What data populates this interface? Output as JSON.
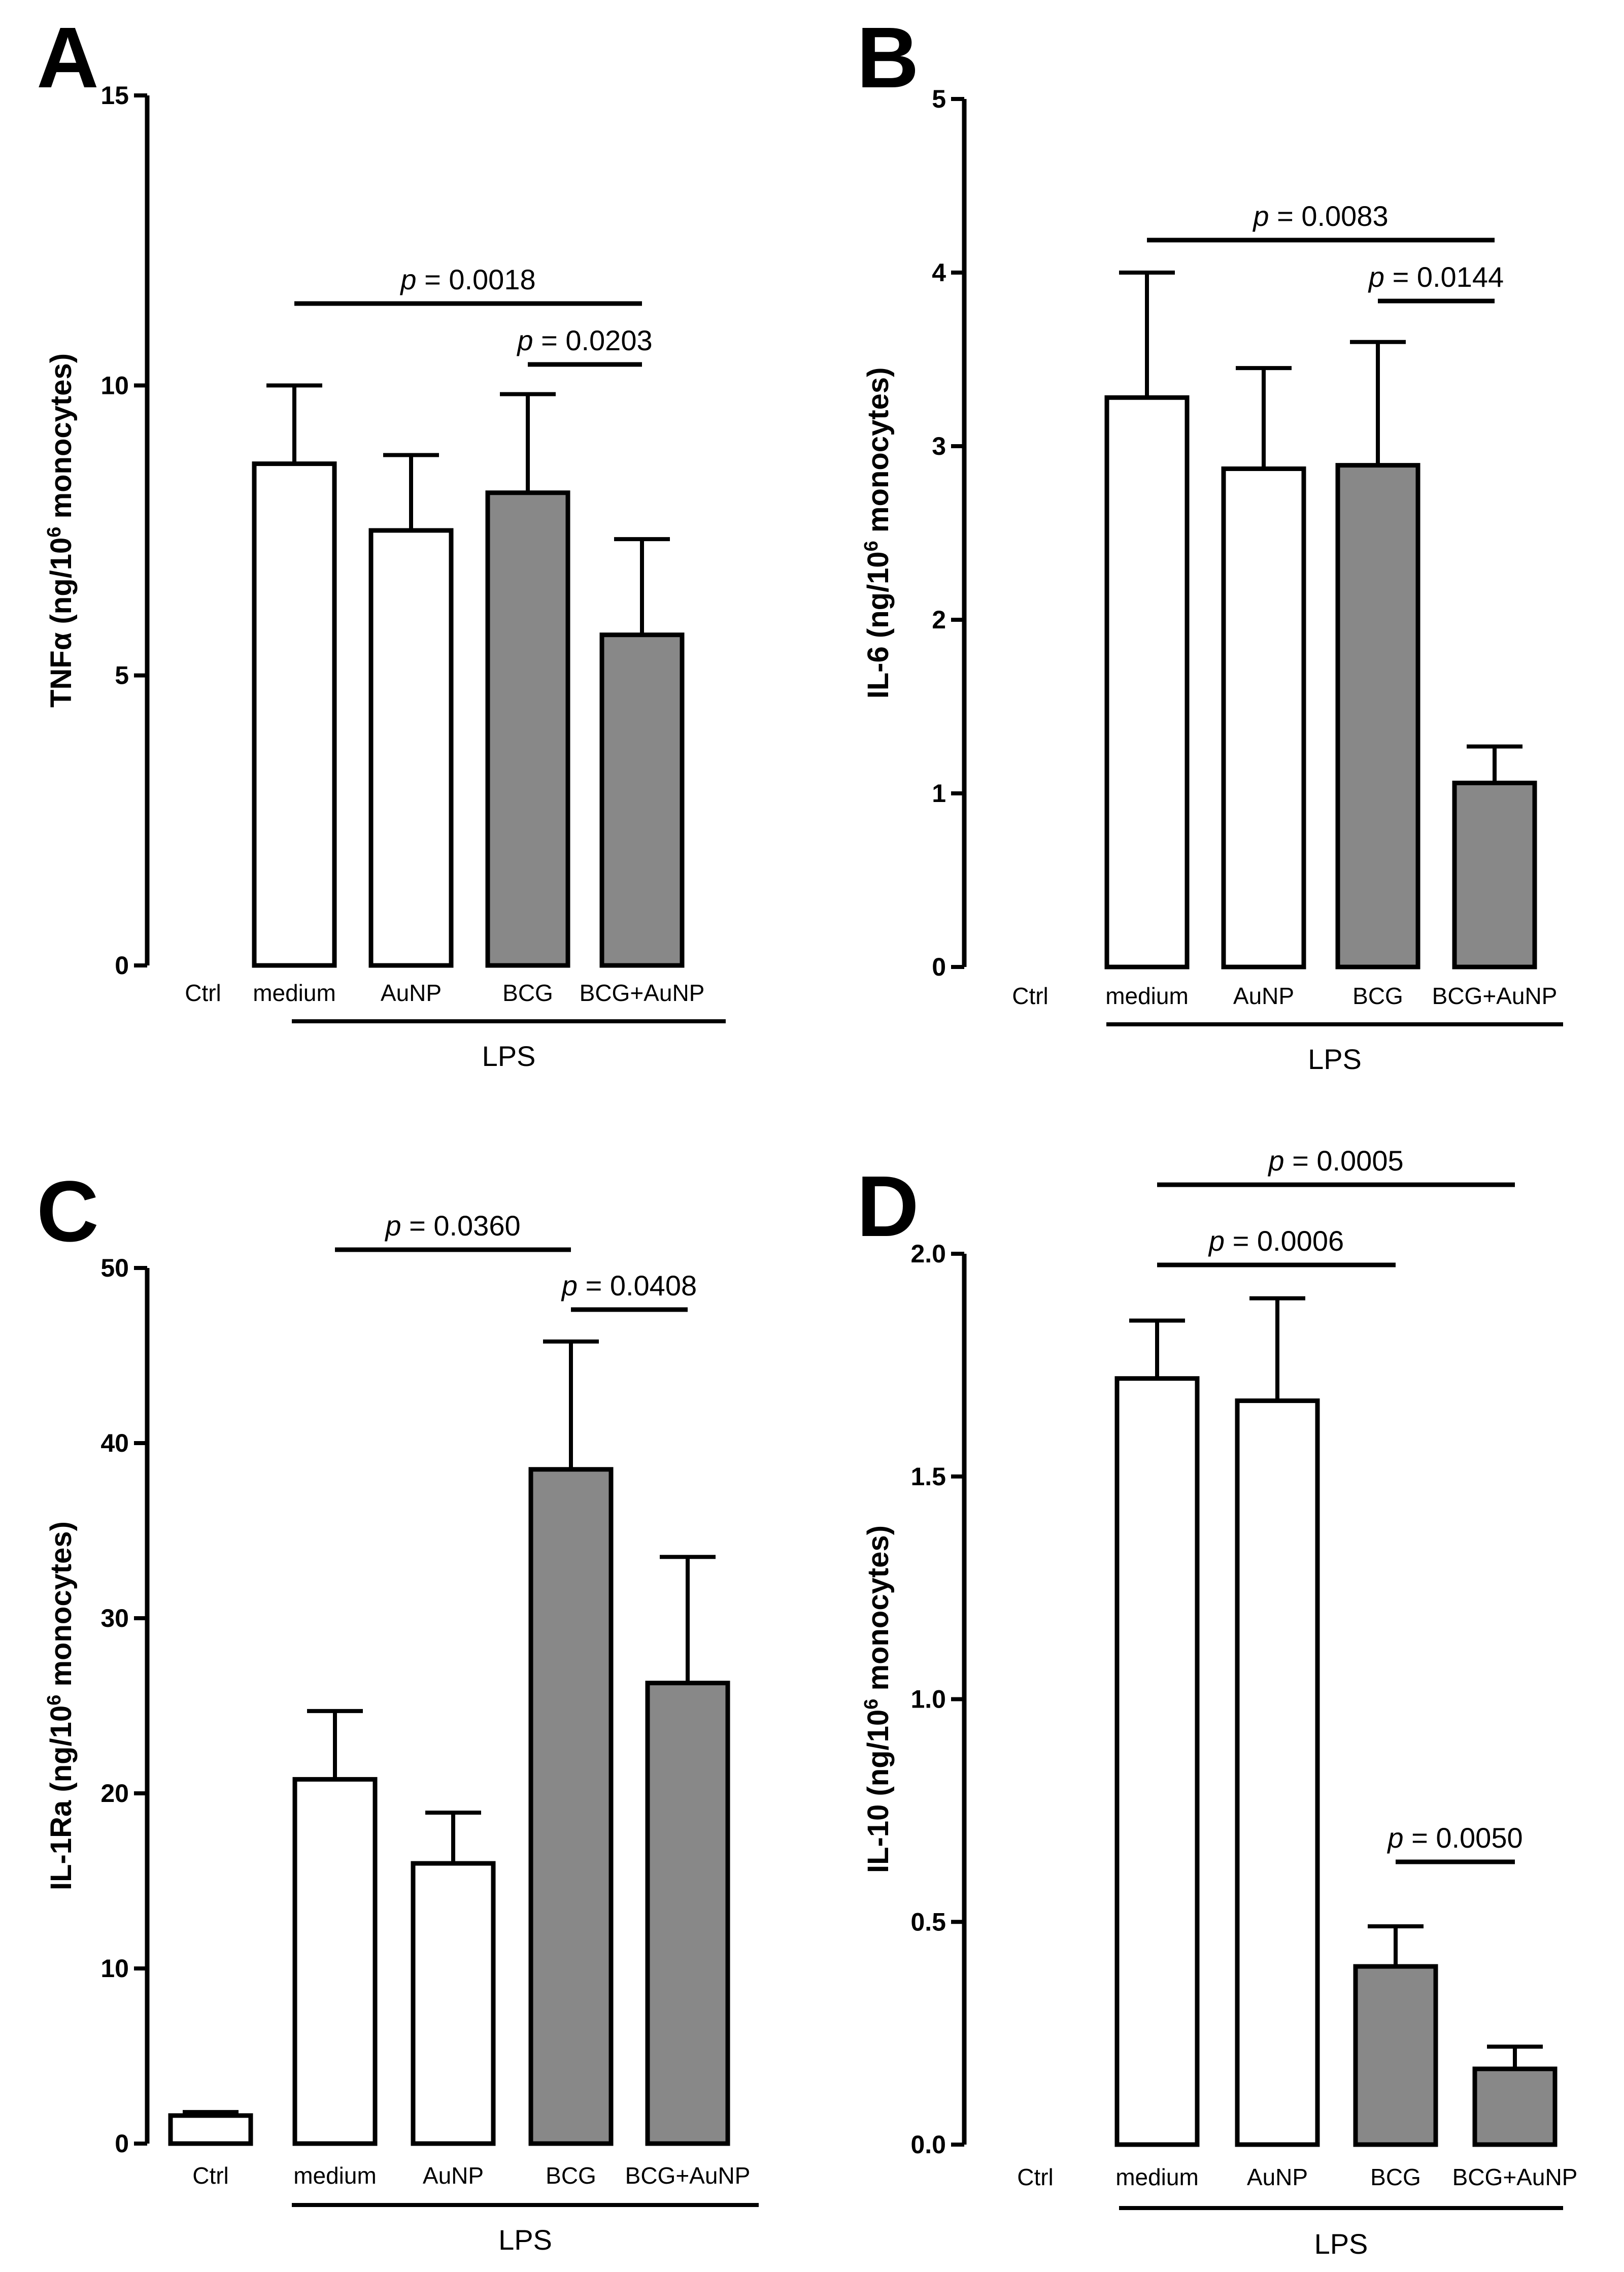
{
  "group_label": "LPS",
  "chart_data": [
    {
      "type": "bar",
      "panel": "A",
      "ylabel": {
        "pre": "TNF",
        "greek": "α",
        "mid": " (ng/10",
        "sup": "6",
        "post": " monocytes)"
      },
      "ylim": [
        0,
        15
      ],
      "yticks": [
        0,
        5,
        10,
        15
      ],
      "categories": [
        "Ctrl",
        "medium",
        "AuNP",
        "BCG",
        "BCG+AuNP"
      ],
      "values": [
        0,
        8.65,
        7.5,
        8.15,
        5.7
      ],
      "errors": [
        0,
        1.35,
        1.3,
        1.7,
        1.65
      ],
      "fill_colors": [
        "#ffffff",
        "#ffffff",
        "#ffffff",
        "#888888",
        "#888888"
      ],
      "significance": [
        {
          "from": 1,
          "to": 4,
          "p_prefix": "p",
          "p_text": " = 0.0018"
        },
        {
          "from": 3,
          "to": 4,
          "p_prefix": "p",
          "p_text": " = 0.0203"
        }
      ]
    },
    {
      "type": "bar",
      "panel": "B",
      "ylabel": {
        "pre": "IL-6",
        "greek": "",
        "mid": " (ng/10",
        "sup": "6",
        "post": " monocytes)"
      },
      "ylim": [
        0,
        5
      ],
      "yticks": [
        0,
        1,
        2,
        3,
        4,
        5
      ],
      "categories": [
        "Ctrl",
        "medium",
        "AuNP",
        "BCG",
        "BCG+AuNP"
      ],
      "values": [
        0,
        3.28,
        2.87,
        2.89,
        1.06
      ],
      "errors": [
        0,
        0.72,
        0.58,
        0.71,
        0.21
      ],
      "fill_colors": [
        "#ffffff",
        "#ffffff",
        "#ffffff",
        "#888888",
        "#888888"
      ],
      "significance": [
        {
          "from": 1,
          "to": 4,
          "p_prefix": "p",
          "p_text": " = 0.0083"
        },
        {
          "from": 3,
          "to": 4,
          "p_prefix": "p",
          "p_text": " = 0.0144"
        }
      ]
    },
    {
      "type": "bar",
      "panel": "C",
      "ylabel": {
        "pre": "IL-1Ra",
        "greek": "",
        "mid": " (ng/10",
        "sup": "6",
        "post": " monocytes)"
      },
      "ylim": [
        0,
        50
      ],
      "yticks": [
        0,
        10,
        20,
        30,
        40,
        50
      ],
      "categories": [
        "Ctrl",
        "medium",
        "AuNP",
        "BCG",
        "BCG+AuNP"
      ],
      "values": [
        1.6,
        20.8,
        16.0,
        38.5,
        26.3
      ],
      "errors": [
        0.2,
        3.9,
        2.9,
        7.3,
        7.2
      ],
      "fill_colors": [
        "#ffffff",
        "#ffffff",
        "#ffffff",
        "#888888",
        "#888888"
      ],
      "significance": [
        {
          "from": 1,
          "to": 3,
          "p_prefix": "p",
          "p_text": " = 0.0360"
        },
        {
          "from": 3,
          "to": 4,
          "p_prefix": "p",
          "p_text": " = 0.0408"
        }
      ]
    },
    {
      "type": "bar",
      "panel": "D",
      "ylabel": {
        "pre": "IL-10",
        "greek": "",
        "mid": " (ng/10",
        "sup": "6",
        "post": " monocytes)"
      },
      "ylim": [
        0,
        2.0
      ],
      "yticks": [
        0.0,
        0.5,
        1.0,
        1.5,
        2.0
      ],
      "ytick_labels": [
        "0.0",
        "0.5",
        "1.0",
        "1.5",
        "2.0"
      ],
      "categories": [
        "Ctrl",
        "medium",
        "AuNP",
        "BCG",
        "BCG+AuNP"
      ],
      "values": [
        0,
        1.72,
        1.67,
        0.4,
        0.17
      ],
      "errors": [
        0,
        0.13,
        0.23,
        0.09,
        0.05
      ],
      "fill_colors": [
        "#ffffff",
        "#ffffff",
        "#ffffff",
        "#888888",
        "#888888"
      ],
      "significance": [
        {
          "from": 1,
          "to": 4,
          "p_prefix": "p",
          "p_text": " = 0.0005"
        },
        {
          "from": 1,
          "to": 3,
          "p_prefix": "p",
          "p_text": " = 0.0006"
        },
        {
          "from": 3,
          "to": 4,
          "p_prefix": "p",
          "p_text": " = 0.0050"
        }
      ]
    }
  ]
}
